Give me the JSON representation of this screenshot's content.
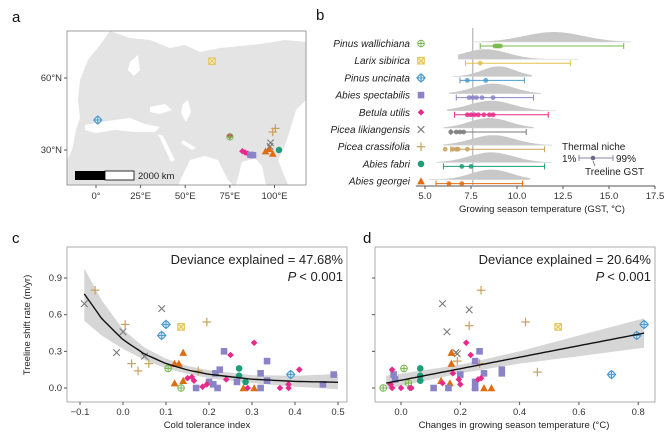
{
  "colors": {
    "Pinus wallichiana": "#77b84a",
    "Larix sibirica": "#e3c24e",
    "Pinus uncinata": "#4b9bd1",
    "Abies spectabilis": "#8a84c6",
    "Betula utilis": "#e7298a",
    "Picea likiangensis": "#7a7a7a",
    "Picea crassifolia": "#c9a15a",
    "Abies fabri": "#1b9e77",
    "Abies georgei": "#e06c12"
  },
  "shapes": {
    "Pinus wallichiana": "circle-plus",
    "Larix sibirica": "square-x",
    "Pinus uncinata": "diamond-plus",
    "Abies spectabilis": "square",
    "Betula utilis": "diamond",
    "Picea likiangensis": "x",
    "Picea crassifolia": "plus",
    "Abies fabri": "circle",
    "Abies georgei": "triangle"
  },
  "chart_data": [
    {
      "panel": "a",
      "type": "map",
      "x_ticks": [
        {
          "lon": 0,
          "label": "0°"
        },
        {
          "lon": 25,
          "label": "25°E"
        },
        {
          "lon": 50,
          "label": "50°E"
        },
        {
          "lon": 75,
          "label": "75°E"
        },
        {
          "lon": 100,
          "label": "100°E"
        }
      ],
      "y_ticks": [
        {
          "lat": 60,
          "label": "60°N"
        },
        {
          "lat": 30,
          "label": "30°N"
        }
      ],
      "scale_bar": "2000 km",
      "sites": [
        {
          "species": "Pinus uncinata",
          "lon": 1,
          "lat": 42.5
        },
        {
          "species": "Larix sibirica",
          "lon": 65,
          "lat": 67
        },
        {
          "species": "Betula utilis",
          "lon": 75,
          "lat": 35.8
        },
        {
          "species": "Pinus wallichiana",
          "lon": 75,
          "lat": 35.5
        },
        {
          "species": "Betula utilis",
          "lon": 82,
          "lat": 29.5
        },
        {
          "species": "Betula utilis",
          "lon": 83.5,
          "lat": 29
        },
        {
          "species": "Betula utilis",
          "lon": 85,
          "lat": 28.5
        },
        {
          "species": "Abies spectabilis",
          "lon": 86.5,
          "lat": 28
        },
        {
          "species": "Abies spectabilis",
          "lon": 88,
          "lat": 27.8
        },
        {
          "species": "Abies georgei",
          "lon": 95,
          "lat": 29.5
        },
        {
          "species": "Abies georgei",
          "lon": 97,
          "lat": 30.5
        },
        {
          "species": "Abies georgei",
          "lon": 99,
          "lat": 28.5
        },
        {
          "species": "Picea likiangensis",
          "lon": 97.5,
          "lat": 31.5
        },
        {
          "species": "Picea likiangensis",
          "lon": 97.8,
          "lat": 33
        },
        {
          "species": "Picea crassifolia",
          "lon": 99,
          "lat": 37.5
        },
        {
          "species": "Picea crassifolia",
          "lon": 100.5,
          "lat": 39
        },
        {
          "species": "Abies fabri",
          "lon": 102.5,
          "lat": 30
        }
      ]
    },
    {
      "panel": "b",
      "type": "range",
      "xlabel": "Growing season temperature (GST, °C)",
      "xlim": [
        4.5,
        17.5
      ],
      "xticks": [
        5.0,
        7.5,
        10.0,
        12.5,
        15.0,
        17.5
      ],
      "xtick_labels": [
        "5.0",
        "7.5",
        "10.0",
        "12.5",
        "15.0",
        "17.5"
      ],
      "reference_line": 7.6,
      "species": [
        {
          "name": "Pinus wallichiana",
          "p1": 8.0,
          "p99": 15.8,
          "treeline_gst": [
            8.8,
            8.9,
            9.0,
            9.1
          ],
          "density_mode": 12.0,
          "density_sd": 1.6
        },
        {
          "name": "Larix sibirica",
          "p1": 7.2,
          "p99": 12.9,
          "treeline_gst": [
            8.0
          ],
          "density_mode": 8.3,
          "density_sd": 1.2
        },
        {
          "name": "Pinus uncinata",
          "p1": 6.9,
          "p99": 10.4,
          "treeline_gst": [
            7.3,
            8.3
          ],
          "density_mode": 9.0,
          "density_sd": 0.9
        },
        {
          "name": "Abies spectabilis",
          "p1": 6.7,
          "p99": 10.9,
          "treeline_gst": [
            7.4,
            7.6,
            7.8,
            8.1,
            8.7
          ],
          "density_mode": 8.7,
          "density_sd": 1.1
        },
        {
          "name": "Betula utilis",
          "p1": 6.6,
          "p99": 11.7,
          "treeline_gst": [
            7.3,
            7.5,
            7.7,
            7.9,
            8.2,
            8.5,
            8.7
          ],
          "density_mode": 8.6,
          "density_sd": 1.2
        },
        {
          "name": "Picea likiangensis",
          "p1": 6.4,
          "p99": 10.5,
          "treeline_gst": [
            6.4,
            6.7,
            6.9,
            7.1
          ],
          "density_mode": 8.5,
          "density_sd": 1.1
        },
        {
          "name": "Picea crassifolia",
          "p1": 6.4,
          "p99": 11.5,
          "treeline_gst": [
            6.1,
            6.5,
            6.7,
            6.8,
            7.3
          ],
          "density_mode": 8.7,
          "density_sd": 1.2
        },
        {
          "name": "Abies fabri",
          "p1": 6.0,
          "p99": 11.5,
          "treeline_gst": [
            7.0,
            7.5
          ],
          "density_mode": 8.6,
          "density_sd": 1.2
        },
        {
          "name": "Abies georgei",
          "p1": 5.6,
          "p99": 10.3,
          "treeline_gst": [
            6.3,
            7.0
          ],
          "density_mode": 8.6,
          "density_sd": 1.1
        }
      ],
      "legend": {
        "title": "Thermal niche",
        "low": "1%",
        "high": "99%",
        "point": "Treeline GST"
      }
    },
    {
      "panel": "c",
      "type": "scatter",
      "xlabel": "Cold tolerance index",
      "ylabel": "Treeline shift rate (m/yr)",
      "xlim": [
        -0.12,
        0.51
      ],
      "ylim": [
        -0.11,
        1.1
      ],
      "xticks": [
        -0.1,
        0.0,
        0.1,
        0.2,
        0.3,
        0.4,
        0.5
      ],
      "xtick_labels": [
        "−0.1",
        "0.0",
        "0.1",
        "0.2",
        "0.3",
        "0.4",
        "0.5"
      ],
      "yticks": [
        0.0,
        0.3,
        0.6,
        0.9
      ],
      "ytick_labels": [
        "0.0",
        "0.3",
        "0.6",
        "0.9"
      ],
      "annotation": "Deviance explained = 47.68%",
      "p_label": "P",
      "p_value": "< 0.001",
      "fit": {
        "x": [
          -0.09,
          -0.05,
          0.0,
          0.05,
          0.1,
          0.15,
          0.2,
          0.3,
          0.4,
          0.5
        ],
        "y": [
          0.77,
          0.57,
          0.395,
          0.278,
          0.2,
          0.147,
          0.112,
          0.072,
          0.054,
          0.047
        ],
        "lower": [
          0.55,
          0.43,
          0.32,
          0.23,
          0.16,
          0.115,
          0.08,
          0.04,
          0.01,
          -0.01
        ],
        "upper": [
          0.98,
          0.72,
          0.48,
          0.33,
          0.24,
          0.18,
          0.145,
          0.105,
          0.1,
          0.115
        ]
      },
      "points": [
        [
          "Picea crassifolia",
          -0.065,
          0.8
        ],
        [
          "Picea crassifolia",
          0.005,
          0.52
        ],
        [
          "Picea crassifolia",
          0.02,
          0.2
        ],
        [
          "Picea crassifolia",
          0.035,
          0.14
        ],
        [
          "Picea crassifolia",
          0.06,
          0.2
        ],
        [
          "Picea crassifolia",
          0.195,
          0.54
        ],
        [
          "Picea crassifolia",
          0.175,
          0.14
        ],
        [
          "Picea likiangensis",
          -0.09,
          0.69
        ],
        [
          "Picea likiangensis",
          0.0,
          0.46
        ],
        [
          "Picea likiangensis",
          -0.015,
          0.29
        ],
        [
          "Picea likiangensis",
          0.05,
          0.26
        ],
        [
          "Picea likiangensis",
          0.09,
          0.65
        ],
        [
          "Pinus uncinata",
          0.1,
          0.52
        ],
        [
          "Pinus uncinata",
          0.09,
          0.43
        ],
        [
          "Pinus uncinata",
          0.39,
          0.11
        ],
        [
          "Larix sibirica",
          0.135,
          0.5
        ],
        [
          "Pinus wallichiana",
          0.105,
          0.16
        ],
        [
          "Pinus wallichiana",
          0.135,
          0.0
        ],
        [
          "Abies georgei",
          0.14,
          0.29
        ],
        [
          "Abies georgei",
          0.12,
          0.2
        ],
        [
          "Abies georgei",
          0.13,
          0.2
        ],
        [
          "Abies georgei",
          0.12,
          0.04
        ],
        [
          "Abies georgei",
          0.14,
          0.06
        ],
        [
          "Abies georgei",
          0.28,
          0.0
        ],
        [
          "Abies georgei",
          0.305,
          0.0
        ],
        [
          "Abies fabri",
          0.27,
          0.16
        ],
        [
          "Abies fabri",
          0.27,
          0.1
        ],
        [
          "Abies fabri",
          0.285,
          0.05
        ],
        [
          "Abies spectabilis",
          0.235,
          0.3
        ],
        [
          "Abies spectabilis",
          0.225,
          0.15
        ],
        [
          "Abies spectabilis",
          0.215,
          0.12
        ],
        [
          "Abies spectabilis",
          0.2,
          0.05
        ],
        [
          "Abies spectabilis",
          0.21,
          0.03
        ],
        [
          "Abies spectabilis",
          0.22,
          0.0
        ],
        [
          "Abies spectabilis",
          0.17,
          0.0
        ],
        [
          "Abies spectabilis",
          0.32,
          0.12
        ],
        [
          "Abies spectabilis",
          0.335,
          0.22
        ],
        [
          "Abies spectabilis",
          0.335,
          0.06
        ],
        [
          "Abies spectabilis",
          0.32,
          0.0
        ],
        [
          "Abies spectabilis",
          0.265,
          0.05
        ],
        [
          "Abies spectabilis",
          0.465,
          0.03
        ],
        [
          "Abies spectabilis",
          0.49,
          0.11
        ],
        [
          "Betula utilis",
          0.25,
          0.27
        ],
        [
          "Betula utilis",
          0.305,
          0.37
        ],
        [
          "Betula utilis",
          0.41,
          0.15
        ],
        [
          "Betula utilis",
          0.15,
          0.08
        ],
        [
          "Betula utilis",
          0.16,
          0.09
        ],
        [
          "Betula utilis",
          0.165,
          0.06
        ],
        [
          "Betula utilis",
          0.185,
          0.01
        ],
        [
          "Betula utilis",
          0.195,
          0.03
        ],
        [
          "Betula utilis",
          0.24,
          0.07
        ],
        [
          "Betula utilis",
          0.29,
          0.0
        ],
        [
          "Betula utilis",
          0.365,
          0.0
        ],
        [
          "Betula utilis",
          0.385,
          0.0
        ],
        [
          "Betula utilis",
          0.385,
          0.03
        ]
      ]
    },
    {
      "panel": "d",
      "type": "scatter",
      "xlabel": "Changes in growing season temperature (°C)",
      "xlim": [
        -0.09,
        0.86
      ],
      "ylim": [
        -0.11,
        1.1
      ],
      "xticks": [
        0.0,
        0.2,
        0.4,
        0.6,
        0.8
      ],
      "xtick_labels": [
        "0.0",
        "0.2",
        "0.4",
        "0.6",
        "0.8"
      ],
      "yticks": [
        0.0,
        0.3,
        0.6,
        0.9
      ],
      "annotation": "Deviance explained = 20.64%",
      "p_label": "P",
      "p_value": "< 0.001",
      "fit": {
        "x": [
          -0.05,
          0.2,
          0.4,
          0.6,
          0.82
        ],
        "y": [
          0.04,
          0.158,
          0.252,
          0.346,
          0.449
        ],
        "lower": [
          -0.01,
          0.12,
          0.2,
          0.26,
          0.33
        ],
        "upper": [
          0.1,
          0.19,
          0.3,
          0.43,
          0.57
        ]
      },
      "points": [
        [
          "Picea crassifolia",
          0.27,
          0.8
        ],
        [
          "Picea crassifolia",
          0.23,
          0.51
        ],
        [
          "Picea crassifolia",
          0.42,
          0.54
        ],
        [
          "Picea crassifolia",
          0.46,
          0.13
        ],
        [
          "Picea crassifolia",
          0.19,
          0.22
        ],
        [
          "Picea crassifolia",
          0.265,
          0.2
        ],
        [
          "Picea likiangensis",
          0.14,
          0.69
        ],
        [
          "Picea likiangensis",
          0.23,
          0.64
        ],
        [
          "Picea likiangensis",
          0.155,
          0.46
        ],
        [
          "Picea likiangensis",
          0.185,
          0.29
        ],
        [
          "Picea likiangensis",
          0.19,
          0.28
        ],
        [
          "Pinus uncinata",
          0.82,
          0.52
        ],
        [
          "Pinus uncinata",
          0.795,
          0.43
        ],
        [
          "Pinus uncinata",
          0.71,
          0.11
        ],
        [
          "Larix sibirica",
          0.53,
          0.5
        ],
        [
          "Pinus wallichiana",
          0.01,
          0.16
        ],
        [
          "Pinus wallichiana",
          -0.06,
          0.0
        ],
        [
          "Pinus wallichiana",
          0.025,
          0.04
        ],
        [
          "Abies georgei",
          0.17,
          0.29
        ],
        [
          "Abies georgei",
          0.17,
          0.2
        ],
        [
          "Abies georgei",
          0.135,
          0.06
        ],
        [
          "Abies georgei",
          0.165,
          0.04
        ],
        [
          "Abies georgei",
          0.25,
          0.01
        ],
        [
          "Abies georgei",
          0.28,
          0.0
        ],
        [
          "Abies georgei",
          0.305,
          0.0
        ],
        [
          "Abies fabri",
          0.065,
          0.16
        ],
        [
          "Abies fabri",
          0.065,
          0.1
        ],
        [
          "Abies fabri",
          0.065,
          0.06
        ],
        [
          "Abies spectabilis",
          0.265,
          0.3
        ],
        [
          "Abies spectabilis",
          0.25,
          0.22
        ],
        [
          "Abies spectabilis",
          0.28,
          0.12
        ],
        [
          "Abies spectabilis",
          0.2,
          0.11
        ],
        [
          "Abies spectabilis",
          0.34,
          0.15
        ],
        [
          "Abies spectabilis",
          0.34,
          0.12
        ],
        [
          "Abies spectabilis",
          0.11,
          0.0
        ],
        [
          "Abies spectabilis",
          0.16,
          0.0
        ],
        [
          "Abies spectabilis",
          0.25,
          0.0
        ],
        [
          "Abies spectabilis",
          0.25,
          0.05
        ],
        [
          "Abies spectabilis",
          -0.025,
          0.11
        ],
        [
          "Abies spectabilis",
          -0.02,
          0.07
        ],
        [
          "Betula utilis",
          0.22,
          0.37
        ],
        [
          "Betula utilis",
          0.235,
          0.27
        ],
        [
          "Betula utilis",
          -0.03,
          0.15
        ],
        [
          "Betula utilis",
          -0.035,
          0.03
        ],
        [
          "Betula utilis",
          -0.03,
          0.0
        ],
        [
          "Betula utilis",
          0.0,
          0.0
        ],
        [
          "Betula utilis",
          0.03,
          0.0
        ],
        [
          "Betula utilis",
          0.035,
          0.0
        ],
        [
          "Betula utilis",
          0.14,
          0.04
        ],
        [
          "Betula utilis",
          0.175,
          0.12
        ],
        [
          "Betula utilis",
          0.195,
          0.07
        ],
        [
          "Betula utilis",
          0.2,
          0.03
        ],
        [
          "Betula utilis",
          0.26,
          0.07
        ],
        [
          "Betula utilis",
          0.27,
          0.08
        ]
      ]
    }
  ],
  "panel_labels": {
    "a": "a",
    "b": "b",
    "c": "c",
    "d": "d"
  }
}
